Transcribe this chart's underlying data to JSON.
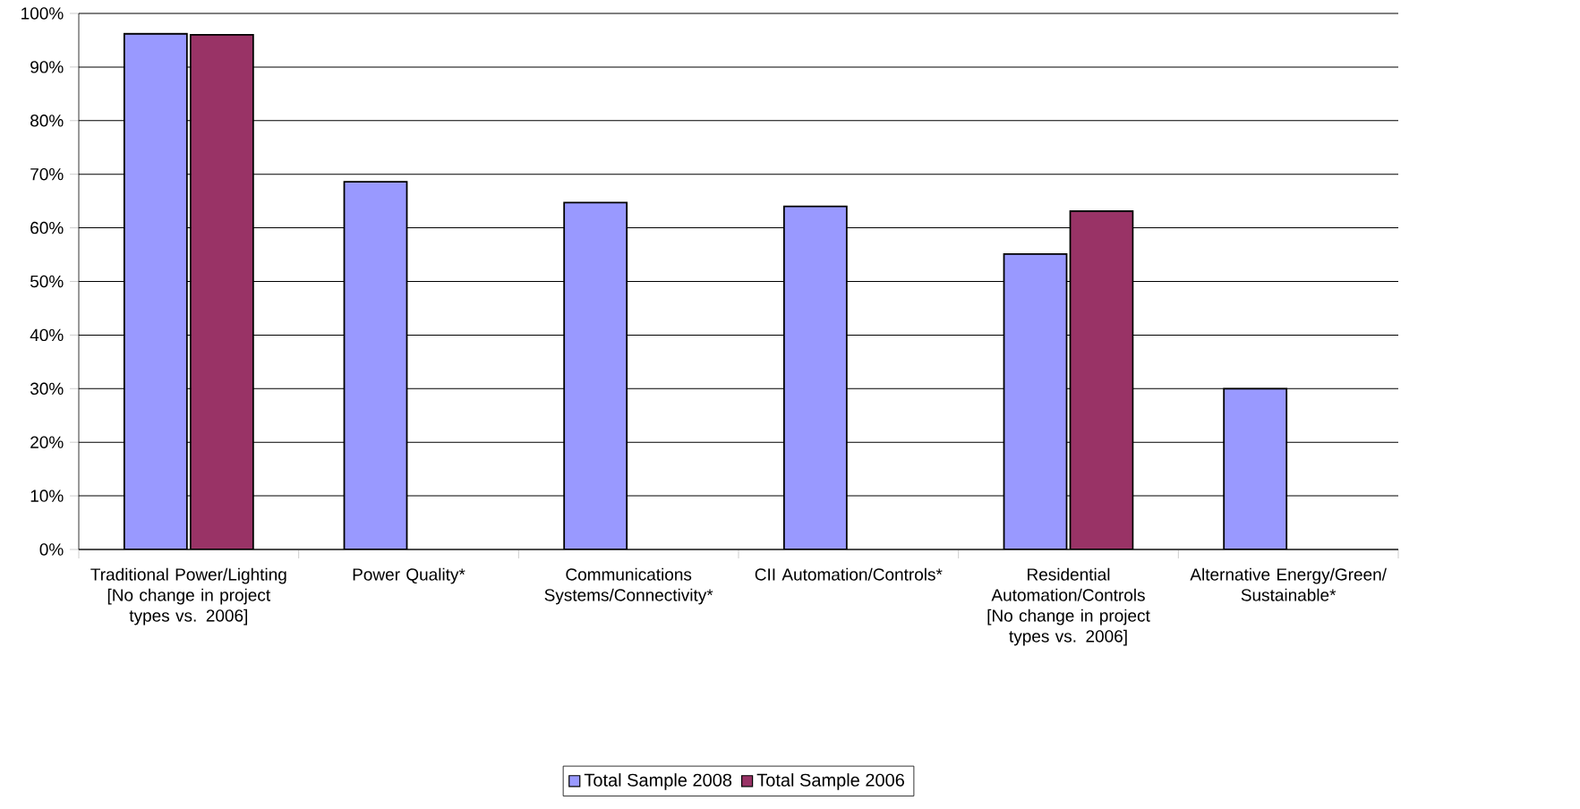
{
  "chart_data": {
    "type": "bar",
    "categories": [
      "Traditional Power/Lighting [No change in project types vs. 2006]",
      "Power Quality*",
      "Communications Systems/Connectivity*",
      "CII Automation/Controls*",
      "Residential Automation/Controls [No change in project types vs. 2006]",
      "Alternative Energy/Green/ Sustainable*"
    ],
    "series": [
      {
        "name": "Total Sample 2008",
        "color": "#9999ff",
        "values": [
          96.2,
          68.6,
          64.7,
          64,
          55.1,
          30
        ]
      },
      {
        "name": "Total Sample  2006",
        "color": "#993366",
        "values": [
          96,
          null,
          null,
          null,
          63.1,
          null
        ]
      }
    ],
    "ylim": [
      0,
      100
    ],
    "yticks": [
      {
        "value": 0,
        "label": "0%"
      },
      {
        "value": 10,
        "label": "10%"
      },
      {
        "value": 20,
        "label": "20%"
      },
      {
        "value": 30,
        "label": "30%"
      },
      {
        "value": 40,
        "label": "40%"
      },
      {
        "value": 50,
        "label": "50%"
      },
      {
        "value": 60,
        "label": "60%"
      },
      {
        "value": 70,
        "label": "70%"
      },
      {
        "value": 80,
        "label": "80%"
      },
      {
        "value": 90,
        "label": "90%"
      },
      {
        "value": 100,
        "label": "100%"
      }
    ],
    "grid": "y",
    "legend": "bottom"
  }
}
